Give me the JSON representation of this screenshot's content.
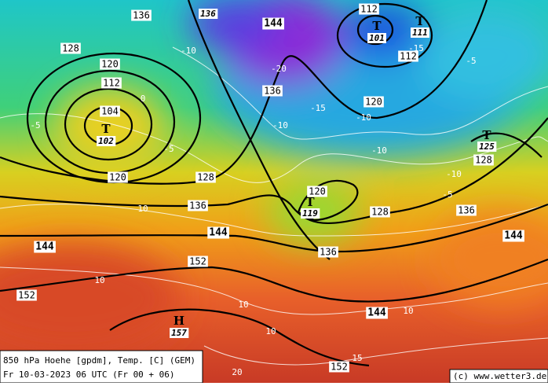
{
  "contour_labels": [
    "136",
    "144",
    "112",
    "112",
    "128",
    "120",
    "112",
    "104",
    "136",
    "120",
    "120",
    "128",
    "136",
    "144",
    "144",
    "120",
    "128",
    "136",
    "144",
    "128",
    "136",
    "152",
    "152",
    "144",
    "152"
  ],
  "pressure_centers": [
    {
      "letter": "T",
      "value": "101"
    },
    {
      "letter": "T",
      "value": "111"
    },
    {
      "letter": "T",
      "value": "102"
    },
    {
      "letter": "T",
      "value": "125"
    },
    {
      "letter": "T",
      "value": "119"
    },
    {
      "letter": "H",
      "value": "157"
    },
    {
      "value": "136"
    }
  ],
  "temperature_labels": [
    "-15",
    "-5",
    "-20",
    "-15",
    "-10",
    "-10",
    "-10",
    "-10",
    "-5",
    "-5",
    "-5",
    "0",
    "-10",
    "10",
    "10",
    "10",
    "10",
    "10",
    "15",
    "20"
  ],
  "footer": {
    "line1": "850 hPa Hoehe [gpdm], Temp. [C] (GEM)",
    "line2": "Fr 10-03-2023 06 UTC (Fr 00 + 06)"
  },
  "credit": "(c) www.wetter3.de"
}
